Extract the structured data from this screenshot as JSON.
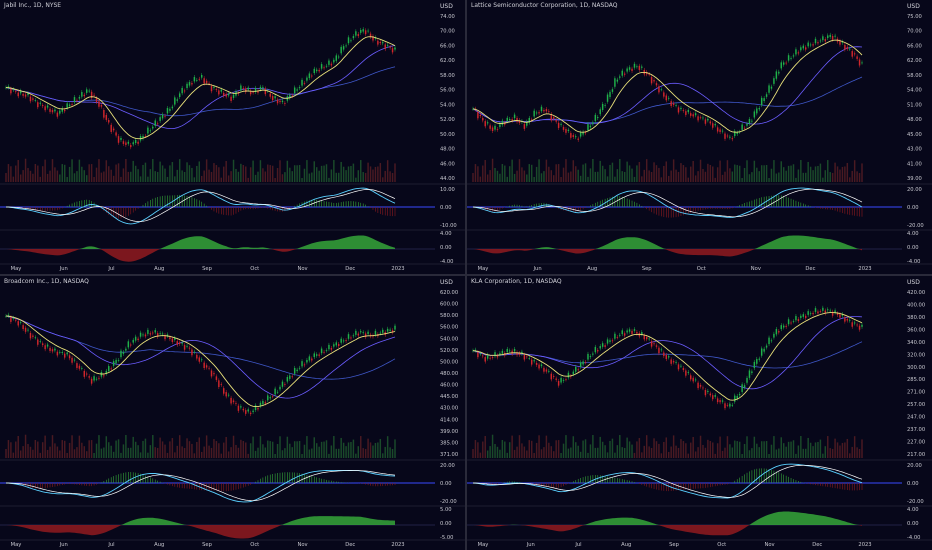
{
  "charts": [
    {
      "title": "Jabil Inc., 1D, NYSE",
      "currency": "USD",
      "price_ticks": [
        "74.00",
        "70.00",
        "66.00",
        "62.00",
        "58.00",
        "56.00",
        "54.00",
        "52.00",
        "50.00",
        "48.00",
        "46.00",
        "44.00"
      ],
      "macd_ticks": [
        "10.00",
        "0.00",
        "-10.00"
      ],
      "hist_ticks": [
        "4.00",
        "0.00",
        "-4.00"
      ],
      "months": [
        "May",
        "Jun",
        "Jul",
        "Aug",
        "Sep",
        "Oct",
        "Nov",
        "Dec",
        "2023"
      ]
    },
    {
      "title": "Lattice Semiconductor Corporation, 1D, NASDAQ",
      "currency": "USD",
      "price_ticks": [
        "75.00",
        "70.00",
        "66.00",
        "62.00",
        "58.00",
        "54.00",
        "51.00",
        "48.00",
        "45.00",
        "43.00",
        "41.00",
        "39.00"
      ],
      "macd_ticks": [
        "20.00",
        "0.00",
        "-20.00"
      ],
      "hist_ticks": [
        "4.00",
        "0.00",
        "-4.00"
      ],
      "months": [
        "May",
        "Jun",
        "Aug",
        "Sep",
        "Oct",
        "Nov",
        "Dec",
        "2023"
      ]
    },
    {
      "title": "Broadcom Inc., 1D, NASDAQ",
      "currency": "USD",
      "price_ticks": [
        "620.00",
        "600.00",
        "580.00",
        "560.00",
        "540.00",
        "520.00",
        "500.00",
        "480.00",
        "460.00",
        "445.00",
        "430.00",
        "414.00",
        "399.00",
        "385.00",
        "371.00"
      ],
      "macd_ticks": [
        "20.00",
        "0.00",
        "-20.00"
      ],
      "hist_ticks": [
        "5.00",
        "0.00",
        "-5.00"
      ],
      "months": [
        "May",
        "Jun",
        "Jul",
        "Aug",
        "Sep",
        "Oct",
        "Nov",
        "Dec",
        "2023"
      ]
    },
    {
      "title": "KLA Corporation, 1D, NASDAQ",
      "currency": "USD",
      "price_ticks": [
        "420.00",
        "400.00",
        "380.00",
        "360.00",
        "340.00",
        "320.00",
        "300.00",
        "285.00",
        "271.00",
        "257.00",
        "247.00",
        "237.00",
        "227.00",
        "217.00"
      ],
      "macd_ticks": [
        "20.00",
        "0.00",
        "-20.00"
      ],
      "hist_ticks": [
        "4.00",
        "0.00",
        "-4.00"
      ],
      "months": [
        "May",
        "Jun",
        "Jul",
        "Aug",
        "Sep",
        "Oct",
        "Nov",
        "Dec",
        "2023"
      ]
    }
  ],
  "colors": {
    "up": "#1fb24a",
    "down": "#d1262b",
    "ma_fast": "#e8e07a",
    "ma_slow": "#6b5cff",
    "ma_long": "#3f57c8",
    "macd": "#5ad0ff",
    "signal": "#ffffff",
    "zero": "#3a49ff",
    "hist_pos": "#35a63a",
    "hist_neg": "#8a1a1f",
    "axis_text": "#c8c8d0",
    "bg": "#07071a"
  },
  "chart_data": [
    {
      "type": "line",
      "title": "Jabil Inc., 1D, NYSE",
      "series": [
        {
          "name": "Close",
          "values": [
            62,
            61,
            60.5,
            59,
            58,
            57,
            58.5,
            60,
            61.5,
            59,
            55,
            52,
            51,
            52,
            54,
            56,
            58,
            61,
            63,
            64,
            62,
            61,
            60,
            62,
            61,
            62,
            60,
            59,
            61,
            63,
            65,
            66,
            67,
            70,
            72,
            73,
            71,
            70,
            69
          ]
        }
      ],
      "ylim": [
        44,
        76
      ]
    },
    {
      "type": "line",
      "title": "Lattice Semiconductor Corporation, 1D, NASDAQ",
      "series": [
        {
          "name": "Close",
          "values": [
            55,
            52,
            50,
            52,
            53,
            51,
            54,
            55,
            52,
            50,
            48,
            50,
            53,
            57,
            62,
            64,
            65,
            63,
            60,
            57,
            55,
            54,
            53,
            52,
            50,
            48,
            50,
            52,
            56,
            60,
            65,
            67,
            69,
            70,
            71,
            72,
            70,
            68,
            65
          ]
        }
      ],
      "ylim": [
        38,
        77
      ]
    },
    {
      "type": "line",
      "title": "Broadcom Inc., 1D, NASDAQ",
      "series": [
        {
          "name": "Close",
          "values": [
            590,
            580,
            560,
            545,
            535,
            530,
            510,
            490,
            500,
            520,
            545,
            560,
            565,
            560,
            550,
            540,
            520,
            500,
            470,
            450,
            440,
            455,
            470,
            490,
            510,
            525,
            535,
            545,
            555,
            565,
            560,
            565,
            570
          ]
        }
      ],
      "ylim": [
        371,
        630
      ]
    },
    {
      "type": "line",
      "title": "KLA Corporation, 1D, NASDAQ",
      "series": [
        {
          "name": "Close",
          "values": [
            350,
            340,
            345,
            350,
            345,
            335,
            325,
            310,
            320,
            335,
            350,
            360,
            370,
            375,
            368,
            355,
            340,
            330,
            315,
            300,
            290,
            280,
            300,
            330,
            355,
            375,
            385,
            392,
            398,
            400,
            395,
            385,
            378
          ]
        }
      ],
      "ylim": [
        217,
        425
      ]
    }
  ]
}
